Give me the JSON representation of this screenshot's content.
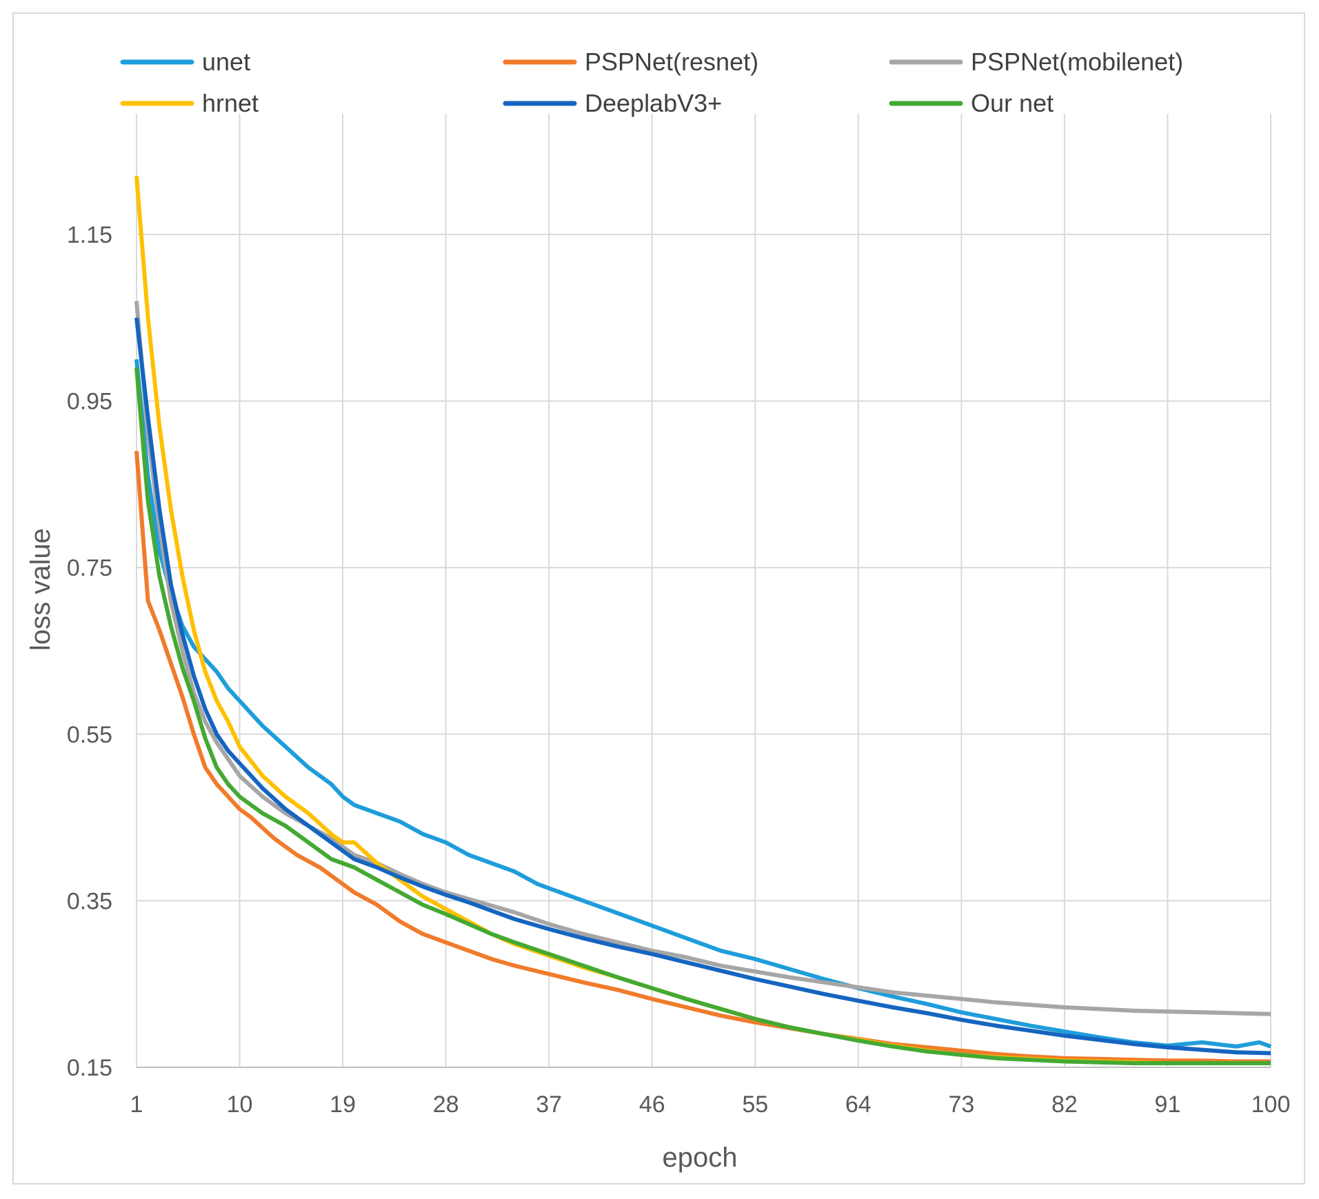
{
  "chart_data": {
    "type": "line",
    "title": "",
    "xlabel": "epoch",
    "ylabel": "loss value",
    "xlim": [
      1,
      100
    ],
    "ylim": [
      0.15,
      1.25
    ],
    "x_ticks": [
      1,
      10,
      19,
      28,
      37,
      46,
      55,
      64,
      73,
      82,
      91,
      100
    ],
    "x_tick_labels": [
      "1",
      "10",
      "19",
      "28",
      "37",
      "46",
      "55",
      "64",
      "73",
      "82",
      "91",
      "100"
    ],
    "y_ticks": [
      0.15,
      0.35,
      0.55,
      0.75,
      0.95,
      1.15
    ],
    "y_tick_labels": [
      "0.15",
      "0.35",
      "0.55",
      "0.75",
      "0.95",
      "1.15"
    ],
    "grid": true,
    "legend_position": "top",
    "series": [
      {
        "name": "unet",
        "color": "#1f9ddb",
        "points": [
          [
            1,
            1.0
          ],
          [
            2,
            0.86
          ],
          [
            3,
            0.77
          ],
          [
            4,
            0.72
          ],
          [
            5,
            0.68
          ],
          [
            6,
            0.655
          ],
          [
            7,
            0.64
          ],
          [
            8,
            0.625
          ],
          [
            9,
            0.605
          ],
          [
            10,
            0.59
          ],
          [
            12,
            0.56
          ],
          [
            14,
            0.535
          ],
          [
            16,
            0.51
          ],
          [
            18,
            0.49
          ],
          [
            19,
            0.475
          ],
          [
            20,
            0.465
          ],
          [
            22,
            0.455
          ],
          [
            24,
            0.445
          ],
          [
            26,
            0.43
          ],
          [
            28,
            0.42
          ],
          [
            30,
            0.405
          ],
          [
            32,
            0.395
          ],
          [
            34,
            0.385
          ],
          [
            36,
            0.37
          ],
          [
            37,
            0.365
          ],
          [
            40,
            0.35
          ],
          [
            43,
            0.335
          ],
          [
            46,
            0.32
          ],
          [
            49,
            0.305
          ],
          [
            52,
            0.29
          ],
          [
            55,
            0.28
          ],
          [
            58,
            0.268
          ],
          [
            61,
            0.256
          ],
          [
            64,
            0.245
          ],
          [
            67,
            0.235
          ],
          [
            70,
            0.226
          ],
          [
            73,
            0.216
          ],
          [
            76,
            0.208
          ],
          [
            79,
            0.2
          ],
          [
            82,
            0.193
          ],
          [
            85,
            0.186
          ],
          [
            88,
            0.18
          ],
          [
            91,
            0.176
          ],
          [
            94,
            0.18
          ],
          [
            97,
            0.175
          ],
          [
            99,
            0.18
          ],
          [
            100,
            0.175
          ]
        ]
      },
      {
        "name": "PSPNet(resnet)",
        "color": "#f07b2b",
        "points": [
          [
            1,
            0.89
          ],
          [
            2,
            0.71
          ],
          [
            3,
            0.675
          ],
          [
            4,
            0.635
          ],
          [
            5,
            0.595
          ],
          [
            6,
            0.55
          ],
          [
            7,
            0.51
          ],
          [
            8,
            0.49
          ],
          [
            9,
            0.475
          ],
          [
            10,
            0.46
          ],
          [
            11,
            0.45
          ],
          [
            13,
            0.425
          ],
          [
            15,
            0.405
          ],
          [
            17,
            0.39
          ],
          [
            19,
            0.37
          ],
          [
            20,
            0.36
          ],
          [
            22,
            0.345
          ],
          [
            24,
            0.325
          ],
          [
            26,
            0.31
          ],
          [
            28,
            0.3
          ],
          [
            30,
            0.29
          ],
          [
            32,
            0.28
          ],
          [
            34,
            0.272
          ],
          [
            37,
            0.262
          ],
          [
            40,
            0.252
          ],
          [
            43,
            0.243
          ],
          [
            46,
            0.232
          ],
          [
            49,
            0.222
          ],
          [
            52,
            0.212
          ],
          [
            55,
            0.204
          ],
          [
            58,
            0.197
          ],
          [
            61,
            0.19
          ],
          [
            64,
            0.184
          ],
          [
            67,
            0.178
          ],
          [
            70,
            0.174
          ],
          [
            73,
            0.17
          ],
          [
            76,
            0.166
          ],
          [
            79,
            0.163
          ],
          [
            82,
            0.161
          ],
          [
            85,
            0.16
          ],
          [
            88,
            0.159
          ],
          [
            91,
            0.158
          ],
          [
            94,
            0.158
          ],
          [
            97,
            0.157
          ],
          [
            100,
            0.157
          ]
        ]
      },
      {
        "name": "PSPNet(mobilenet)",
        "color": "#a6a6a6",
        "points": [
          [
            1,
            1.07
          ],
          [
            2,
            0.91
          ],
          [
            3,
            0.8
          ],
          [
            4,
            0.71
          ],
          [
            5,
            0.65
          ],
          [
            6,
            0.6
          ],
          [
            7,
            0.565
          ],
          [
            8,
            0.54
          ],
          [
            9,
            0.52
          ],
          [
            10,
            0.5
          ],
          [
            12,
            0.475
          ],
          [
            14,
            0.455
          ],
          [
            16,
            0.44
          ],
          [
            18,
            0.425
          ],
          [
            19,
            0.415
          ],
          [
            20,
            0.405
          ],
          [
            22,
            0.395
          ],
          [
            24,
            0.382
          ],
          [
            26,
            0.37
          ],
          [
            28,
            0.36
          ],
          [
            30,
            0.352
          ],
          [
            32,
            0.344
          ],
          [
            34,
            0.336
          ],
          [
            37,
            0.322
          ],
          [
            40,
            0.31
          ],
          [
            43,
            0.3
          ],
          [
            46,
            0.29
          ],
          [
            49,
            0.282
          ],
          [
            52,
            0.272
          ],
          [
            55,
            0.265
          ],
          [
            58,
            0.258
          ],
          [
            61,
            0.252
          ],
          [
            64,
            0.246
          ],
          [
            67,
            0.24
          ],
          [
            70,
            0.236
          ],
          [
            73,
            0.232
          ],
          [
            76,
            0.228
          ],
          [
            79,
            0.225
          ],
          [
            82,
            0.222
          ],
          [
            85,
            0.22
          ],
          [
            88,
            0.218
          ],
          [
            91,
            0.217
          ],
          [
            94,
            0.216
          ],
          [
            97,
            0.215
          ],
          [
            100,
            0.214
          ]
        ]
      },
      {
        "name": "hrnet",
        "color": "#ffc000",
        "points": [
          [
            1,
            1.22
          ],
          [
            2,
            1.05
          ],
          [
            3,
            0.92
          ],
          [
            4,
            0.82
          ],
          [
            5,
            0.74
          ],
          [
            6,
            0.675
          ],
          [
            7,
            0.625
          ],
          [
            8,
            0.59
          ],
          [
            9,
            0.565
          ],
          [
            10,
            0.535
          ],
          [
            12,
            0.5
          ],
          [
            14,
            0.475
          ],
          [
            16,
            0.455
          ],
          [
            18,
            0.43
          ],
          [
            19,
            0.42
          ],
          [
            20,
            0.42
          ],
          [
            22,
            0.395
          ],
          [
            24,
            0.375
          ],
          [
            26,
            0.355
          ],
          [
            28,
            0.34
          ],
          [
            30,
            0.325
          ],
          [
            32,
            0.31
          ],
          [
            34,
            0.298
          ],
          [
            37,
            0.284
          ],
          [
            40,
            0.27
          ],
          [
            43,
            0.258
          ],
          [
            46,
            0.245
          ],
          [
            49,
            0.232
          ],
          [
            52,
            0.22
          ],
          [
            55,
            0.208
          ],
          [
            58,
            0.198
          ],
          [
            61,
            0.19
          ],
          [
            64,
            0.183
          ],
          [
            67,
            0.176
          ],
          [
            70,
            0.17
          ],
          [
            73,
            0.165
          ],
          [
            76,
            0.162
          ],
          [
            79,
            0.16
          ],
          [
            82,
            0.158
          ],
          [
            85,
            0.157
          ],
          [
            88,
            0.156
          ],
          [
            91,
            0.155
          ],
          [
            94,
            0.155
          ],
          [
            97,
            0.155
          ],
          [
            100,
            0.155
          ]
        ]
      },
      {
        "name": "DeeplabV3+",
        "color": "#1565c0",
        "points": [
          [
            1,
            1.05
          ],
          [
            2,
            0.93
          ],
          [
            3,
            0.82
          ],
          [
            4,
            0.73
          ],
          [
            5,
            0.67
          ],
          [
            6,
            0.62
          ],
          [
            7,
            0.58
          ],
          [
            8,
            0.55
          ],
          [
            9,
            0.53
          ],
          [
            10,
            0.515
          ],
          [
            12,
            0.485
          ],
          [
            14,
            0.46
          ],
          [
            16,
            0.44
          ],
          [
            18,
            0.42
          ],
          [
            19,
            0.41
          ],
          [
            20,
            0.4
          ],
          [
            22,
            0.39
          ],
          [
            24,
            0.378
          ],
          [
            26,
            0.367
          ],
          [
            28,
            0.357
          ],
          [
            30,
            0.348
          ],
          [
            32,
            0.338
          ],
          [
            34,
            0.328
          ],
          [
            37,
            0.316
          ],
          [
            40,
            0.305
          ],
          [
            43,
            0.295
          ],
          [
            46,
            0.286
          ],
          [
            49,
            0.276
          ],
          [
            52,
            0.266
          ],
          [
            55,
            0.256
          ],
          [
            58,
            0.247
          ],
          [
            61,
            0.238
          ],
          [
            64,
            0.23
          ],
          [
            67,
            0.222
          ],
          [
            70,
            0.215
          ],
          [
            73,
            0.207
          ],
          [
            76,
            0.2
          ],
          [
            79,
            0.194
          ],
          [
            82,
            0.188
          ],
          [
            85,
            0.183
          ],
          [
            88,
            0.178
          ],
          [
            91,
            0.174
          ],
          [
            94,
            0.171
          ],
          [
            97,
            0.168
          ],
          [
            100,
            0.167
          ]
        ]
      },
      {
        "name": "Our net",
        "color": "#44a932",
        "points": [
          [
            1,
            0.99
          ],
          [
            2,
            0.83
          ],
          [
            3,
            0.74
          ],
          [
            4,
            0.68
          ],
          [
            5,
            0.63
          ],
          [
            6,
            0.59
          ],
          [
            7,
            0.545
          ],
          [
            8,
            0.51
          ],
          [
            9,
            0.49
          ],
          [
            10,
            0.475
          ],
          [
            12,
            0.455
          ],
          [
            14,
            0.44
          ],
          [
            16,
            0.42
          ],
          [
            18,
            0.4
          ],
          [
            19,
            0.395
          ],
          [
            20,
            0.39
          ],
          [
            22,
            0.375
          ],
          [
            24,
            0.36
          ],
          [
            26,
            0.345
          ],
          [
            28,
            0.334
          ],
          [
            30,
            0.322
          ],
          [
            32,
            0.31
          ],
          [
            34,
            0.3
          ],
          [
            37,
            0.286
          ],
          [
            40,
            0.272
          ],
          [
            43,
            0.258
          ],
          [
            46,
            0.245
          ],
          [
            49,
            0.232
          ],
          [
            52,
            0.22
          ],
          [
            55,
            0.208
          ],
          [
            58,
            0.198
          ],
          [
            61,
            0.19
          ],
          [
            64,
            0.182
          ],
          [
            67,
            0.175
          ],
          [
            70,
            0.169
          ],
          [
            73,
            0.165
          ],
          [
            76,
            0.161
          ],
          [
            79,
            0.159
          ],
          [
            82,
            0.157
          ],
          [
            85,
            0.156
          ],
          [
            88,
            0.155
          ],
          [
            91,
            0.155
          ],
          [
            94,
            0.155
          ],
          [
            97,
            0.155
          ],
          [
            100,
            0.155
          ]
        ]
      }
    ]
  }
}
